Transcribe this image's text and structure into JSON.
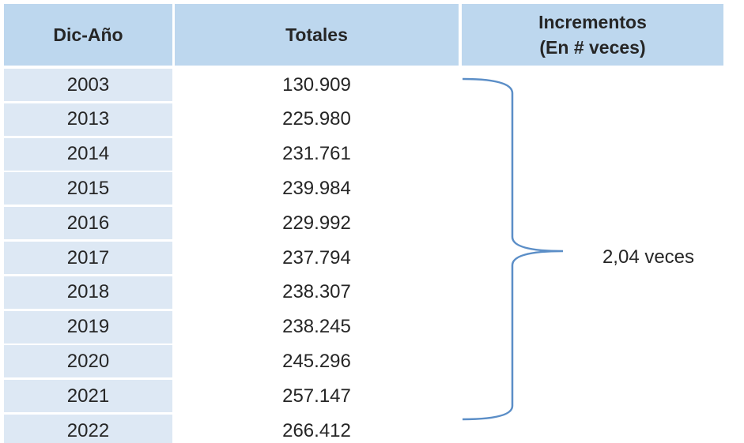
{
  "table": {
    "header": {
      "year": "Dic-Año",
      "total": "Totales",
      "increment_line1": "Incrementos",
      "increment_line2": "(En # veces)"
    },
    "rows": [
      [
        "2003",
        "130.909"
      ],
      [
        "2013",
        "225.980"
      ],
      [
        "2014",
        "231.761"
      ],
      [
        "2015",
        "239.984"
      ],
      [
        "2016",
        "229.992"
      ],
      [
        "2017",
        "237.794"
      ],
      [
        "2018",
        "238.307"
      ],
      [
        "2019",
        "238.245"
      ],
      [
        "2020",
        "245.296"
      ],
      [
        "2021",
        "257.147"
      ],
      [
        "2022",
        "266.412"
      ]
    ],
    "increment": "2,04 veces"
  }
}
